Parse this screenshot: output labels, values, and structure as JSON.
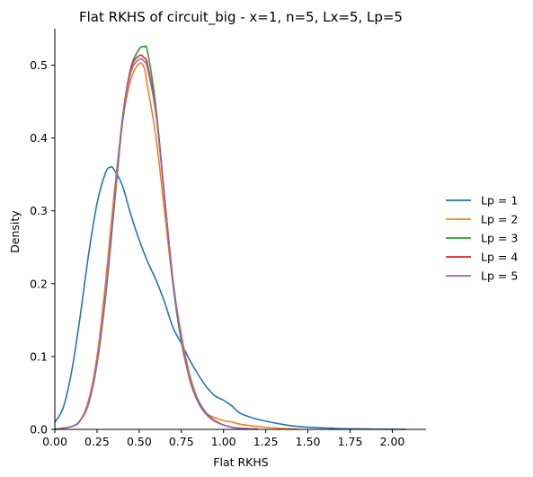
{
  "chart_data": {
    "type": "line",
    "title": "Flat RKHS of circuit_big - x=1, n=5, Lx=5, Lp=5",
    "xlabel": "Flat RKHS",
    "ylabel": "Density",
    "xlim": [
      0,
      2.2
    ],
    "ylim": [
      0,
      0.55
    ],
    "xticks": [
      "0.00",
      "0.25",
      "0.50",
      "0.75",
      "1.00",
      "1.25",
      "1.50",
      "1.75",
      "2.00"
    ],
    "yticks": [
      "0.0",
      "0.1",
      "0.2",
      "0.3",
      "0.4",
      "0.5"
    ],
    "grid": false,
    "legend_position": "right",
    "series": [
      {
        "name": "Lp = 1",
        "color": "#1f77b4",
        "x": [
          0,
          0.05,
          0.1,
          0.15,
          0.2,
          0.25,
          0.3,
          0.33,
          0.35,
          0.4,
          0.45,
          0.5,
          0.55,
          0.6,
          0.65,
          0.7,
          0.75,
          0.8,
          0.85,
          0.9,
          0.95,
          1.0,
          1.05,
          1.1,
          1.2,
          1.3,
          1.4,
          1.5,
          1.6,
          1.7,
          1.8,
          1.9,
          2.0,
          2.08
        ],
        "y": [
          0.01,
          0.03,
          0.08,
          0.155,
          0.24,
          0.31,
          0.352,
          0.36,
          0.357,
          0.335,
          0.295,
          0.26,
          0.23,
          0.205,
          0.175,
          0.14,
          0.118,
          0.095,
          0.075,
          0.058,
          0.046,
          0.04,
          0.032,
          0.022,
          0.014,
          0.009,
          0.005,
          0.003,
          0.002,
          0.001,
          0.0007,
          0.0004,
          0.0002,
          0.0001
        ]
      },
      {
        "name": "Lp = 2",
        "color": "#ff7f0e",
        "x": [
          0,
          0.1,
          0.15,
          0.2,
          0.25,
          0.3,
          0.35,
          0.4,
          0.45,
          0.5,
          0.53,
          0.55,
          0.6,
          0.65,
          0.7,
          0.75,
          0.8,
          0.85,
          0.9,
          0.95,
          1.0,
          1.05,
          1.1,
          1.2,
          1.3,
          1.4,
          1.45
        ],
        "y": [
          0,
          0.004,
          0.012,
          0.04,
          0.1,
          0.2,
          0.32,
          0.42,
          0.48,
          0.502,
          0.496,
          0.47,
          0.4,
          0.3,
          0.2,
          0.13,
          0.075,
          0.04,
          0.022,
          0.016,
          0.012,
          0.01,
          0.007,
          0.004,
          0.002,
          0.0008,
          0.0003
        ]
      },
      {
        "name": "Lp = 3",
        "color": "#2ca02c",
        "x": [
          0,
          0.1,
          0.15,
          0.2,
          0.25,
          0.3,
          0.35,
          0.4,
          0.45,
          0.5,
          0.53,
          0.55,
          0.6,
          0.65,
          0.7,
          0.75,
          0.8,
          0.85,
          0.9,
          0.95,
          1.0,
          1.05,
          1.1,
          1.2
        ],
        "y": [
          0,
          0.004,
          0.012,
          0.035,
          0.09,
          0.18,
          0.3,
          0.42,
          0.495,
          0.522,
          0.525,
          0.518,
          0.44,
          0.32,
          0.2,
          0.12,
          0.07,
          0.04,
          0.022,
          0.012,
          0.006,
          0.003,
          0.0015,
          0.0005
        ]
      },
      {
        "name": "Lp = 4",
        "color": "#d62728",
        "x": [
          0,
          0.1,
          0.15,
          0.2,
          0.25,
          0.3,
          0.35,
          0.4,
          0.45,
          0.5,
          0.53,
          0.55,
          0.6,
          0.65,
          0.7,
          0.75,
          0.8,
          0.85,
          0.9,
          0.95,
          1.0,
          1.05,
          1.1,
          1.2
        ],
        "y": [
          0,
          0.004,
          0.012,
          0.036,
          0.092,
          0.185,
          0.305,
          0.425,
          0.495,
          0.513,
          0.51,
          0.5,
          0.435,
          0.32,
          0.205,
          0.125,
          0.068,
          0.037,
          0.02,
          0.011,
          0.006,
          0.003,
          0.0015,
          0.0005
        ]
      },
      {
        "name": "Lp = 5",
        "color": "#9467bd",
        "x": [
          0,
          0.1,
          0.15,
          0.2,
          0.25,
          0.3,
          0.35,
          0.4,
          0.45,
          0.5,
          0.53,
          0.55,
          0.6,
          0.65,
          0.7,
          0.75,
          0.8,
          0.85,
          0.9,
          0.95,
          1.0,
          1.05,
          1.1,
          1.2
        ],
        "y": [
          0,
          0.004,
          0.012,
          0.036,
          0.092,
          0.185,
          0.305,
          0.425,
          0.49,
          0.508,
          0.505,
          0.495,
          0.432,
          0.318,
          0.205,
          0.125,
          0.07,
          0.038,
          0.021,
          0.012,
          0.006,
          0.003,
          0.0015,
          0.0005
        ]
      }
    ]
  }
}
